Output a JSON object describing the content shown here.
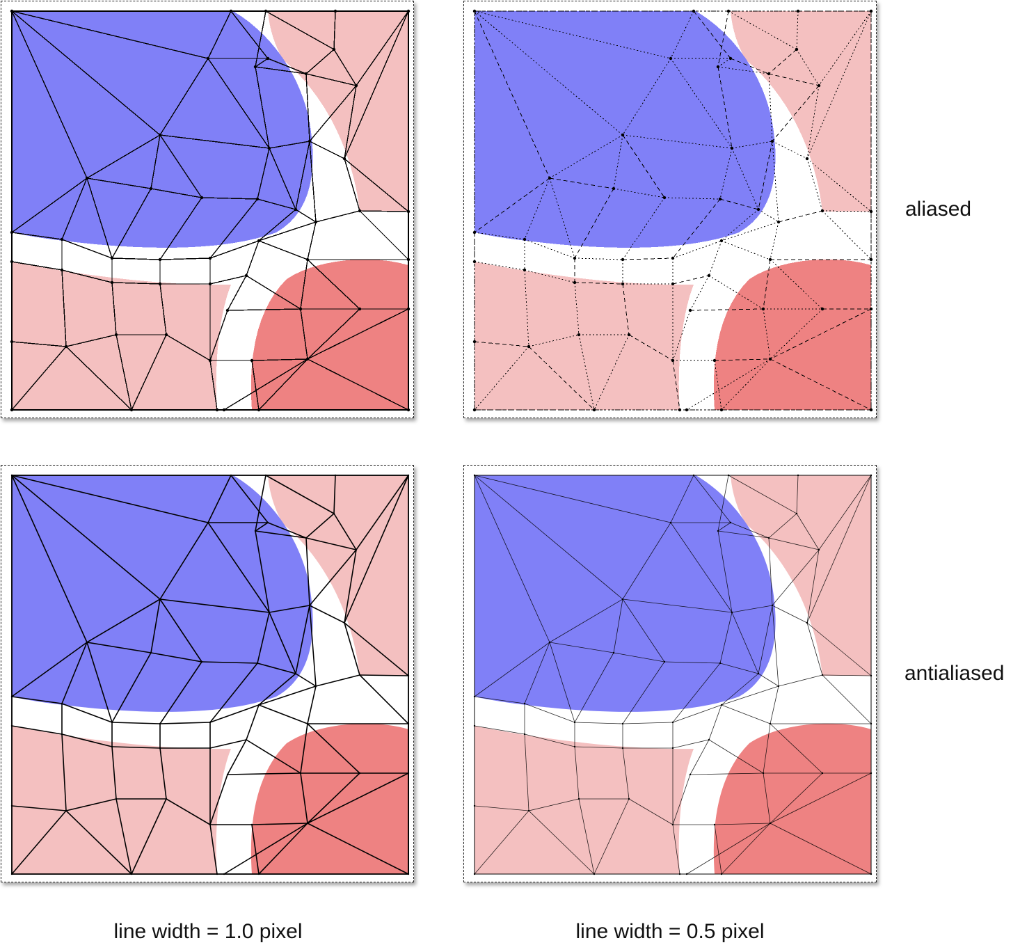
{
  "rows": [
    {
      "label": "aliased"
    },
    {
      "label": "antialiased"
    }
  ],
  "columns": [
    {
      "label": "line width = 1.0 pixel"
    },
    {
      "label": "line width = 0.5 pixel"
    }
  ],
  "colors": {
    "blue_region": "#8080f7",
    "light_red_region": "#f4c0c0",
    "dark_red_region": "#ee8282",
    "gap": "#ffffff",
    "line": "#000000"
  }
}
